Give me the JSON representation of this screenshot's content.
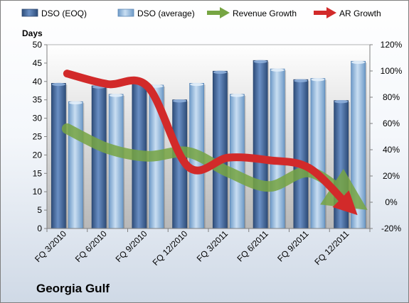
{
  "company": "Georgia Gulf",
  "chart_data": {
    "type": "bar",
    "ylabel": "Days",
    "categories": [
      "FQ 3/2010",
      "FQ 6/2010",
      "FQ 9/2010",
      "FQ 12/2010",
      "FQ 3/2011",
      "FQ 6/2011",
      "FQ 9/2011",
      "FQ 12/2011"
    ],
    "series": [
      {
        "name": "DSO (EOQ)",
        "type": "bar",
        "axis": "left",
        "color": "#4a6fa5",
        "values": [
          39.5,
          38.8,
          40,
          35,
          42.8,
          45.7,
          40.5,
          34.8
        ]
      },
      {
        "name": "DSO (average)",
        "type": "bar",
        "axis": "left",
        "color": "#9dc3e6",
        "values": [
          34.5,
          36.5,
          39,
          39.5,
          36.5,
          43.4,
          40.8,
          45.5
        ]
      },
      {
        "name": "Revenue Growth",
        "type": "line",
        "axis": "right",
        "color": "#77a543",
        "values": [
          0.56,
          0.41,
          0.35,
          0.38,
          0.23,
          0.12,
          0.23,
          0.03
        ]
      },
      {
        "name": "AR Growth",
        "type": "line",
        "axis": "right",
        "color": "#c0272d",
        "values": [
          0.98,
          0.9,
          0.88,
          0.27,
          0.34,
          0.32,
          0.26,
          -0.04
        ]
      }
    ],
    "ylim": [
      0,
      50
    ],
    "yticks": [
      0,
      5,
      10,
      15,
      20,
      25,
      30,
      35,
      40,
      45,
      50
    ],
    "y2lim": [
      -0.2,
      1.2
    ],
    "y2ticks": [
      "-20%",
      "0%",
      "20%",
      "40%",
      "60%",
      "80%",
      "100%",
      "120%"
    ],
    "legend": "top",
    "grid": false
  }
}
